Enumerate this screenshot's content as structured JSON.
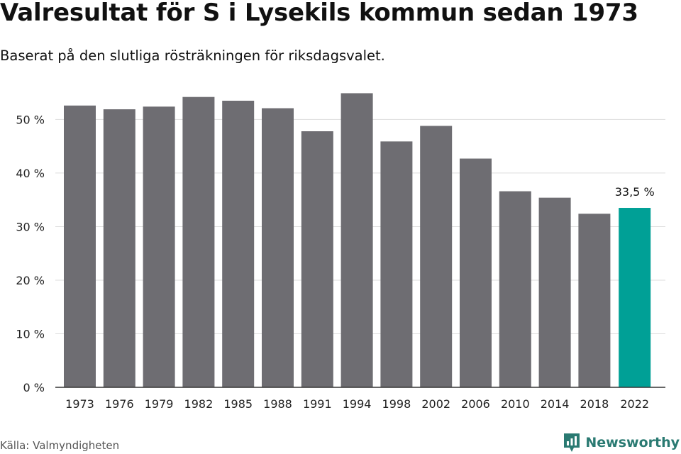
{
  "title": "Valresultat för S i Lysekils kommun sedan 1973",
  "subtitle": "Baserat på den slutliga rösträkningen för riksdagsvalet.",
  "source": "Källa: Valmyndigheten",
  "brand": {
    "name": "Newsworthy",
    "icon": "newsworthy-logo-icon",
    "color": "#2a7a72"
  },
  "colors": {
    "bar": "#6e6d72",
    "highlight": "#00a096",
    "grid": "#dddddd",
    "axis": "#333333"
  },
  "chart_data": {
    "type": "bar",
    "title": "Valresultat för S i Lysekils kommun sedan 1973",
    "xlabel": "",
    "ylabel": "",
    "ylim": [
      0,
      58
    ],
    "yticks": [
      0,
      10,
      20,
      30,
      40,
      50
    ],
    "ytick_labels": [
      "0 %",
      "10 %",
      "20 %",
      "30 %",
      "40 %",
      "50 %"
    ],
    "categories": [
      "1973",
      "1976",
      "1979",
      "1982",
      "1985",
      "1988",
      "1991",
      "1994",
      "1998",
      "2002",
      "2006",
      "2010",
      "2014",
      "2018",
      "2022"
    ],
    "values": [
      52.6,
      51.9,
      52.4,
      54.2,
      53.5,
      52.1,
      47.8,
      54.9,
      45.9,
      48.8,
      42.7,
      36.6,
      35.4,
      32.4,
      33.5
    ],
    "highlight_index": 14,
    "highlight_label": "33,5 %",
    "grid": true
  }
}
